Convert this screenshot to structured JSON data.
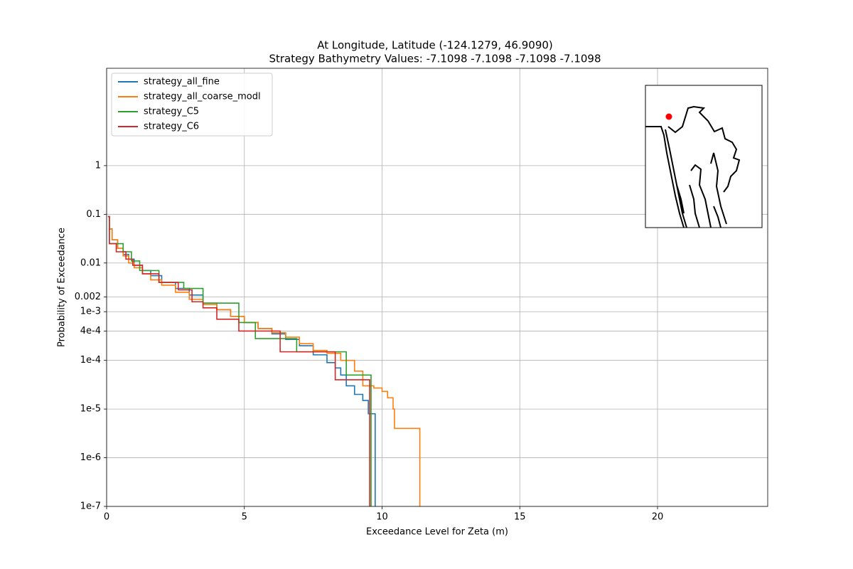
{
  "chart_data": {
    "type": "line",
    "drawstyle": "steps-post",
    "title": "At Longitude, Latitude (-124.1279,  46.9090)",
    "subtitle": "Strategy Bathymetry Values:   -7.1098   -7.1098   -7.1098   -7.1098",
    "x_label": "Exceedance Level for Zeta (m)",
    "y_label": "Probability of Exceedance",
    "xlim": [
      0,
      24
    ],
    "xticks": [
      0,
      5,
      10,
      15,
      20
    ],
    "ylim": [
      1e-07,
      100
    ],
    "log_y": true,
    "grid": true,
    "legend": "upper left",
    "yticks": [
      1e-07,
      {
        "value": 1e-06,
        "label": "1e-6"
      },
      {
        "value": 1e-05,
        "label": "1e-5"
      },
      {
        "value": 0.0001,
        "label": "1e-4"
      },
      {
        "value": 0.0004,
        "label": "4e-4"
      },
      {
        "value": 0.001,
        "label": "1e-3"
      },
      0.002,
      0.01,
      0.1,
      1
    ],
    "series": [
      {
        "name": "strategy_all_fine",
        "color": "#1f77b4",
        "x": [
          0.05,
          0.1,
          0.2,
          0.4,
          0.6,
          0.8,
          1.0,
          1.3,
          1.6,
          2.0,
          2.5,
          3.0,
          3.5,
          4.0,
          4.5,
          5.0,
          5.5,
          6.0,
          6.5,
          7.0,
          7.5,
          8.0,
          8.3,
          8.5,
          8.7,
          9.0,
          9.3,
          9.5,
          9.75
        ],
        "values": [
          0.09,
          0.05,
          0.03,
          0.02,
          0.015,
          0.012,
          0.009,
          0.007,
          0.0055,
          0.004,
          0.003,
          0.0022,
          0.0015,
          0.0011,
          0.0008,
          0.0006,
          0.00045,
          0.00035,
          0.00027,
          0.0002,
          0.00013,
          9e-05,
          7e-05,
          5e-05,
          3e-05,
          2e-05,
          1.5e-05,
          8e-06,
          0
        ]
      },
      {
        "name": "strategy_all_coarse_modl",
        "color": "#ff7f0e",
        "x": [
          0.05,
          0.1,
          0.2,
          0.4,
          0.6,
          0.8,
          1.0,
          1.3,
          1.6,
          2.0,
          2.5,
          3.0,
          3.5,
          4.0,
          4.5,
          5.0,
          5.5,
          6.0,
          6.5,
          7.0,
          7.5,
          8.0,
          8.5,
          9.0,
          9.3,
          9.7,
          10.0,
          10.2,
          10.4,
          10.45,
          11.37
        ],
        "values": [
          0.09,
          0.05,
          0.03,
          0.02,
          0.014,
          0.01,
          0.008,
          0.006,
          0.0045,
          0.0035,
          0.0025,
          0.0018,
          0.0014,
          0.0011,
          0.0008,
          0.0006,
          0.00045,
          0.00037,
          0.0003,
          0.00022,
          0.00016,
          0.00014,
          0.0001,
          6e-05,
          3e-05,
          2.7e-05,
          2.3e-05,
          1.7e-05,
          1e-05,
          4e-06,
          0
        ]
      },
      {
        "name": "strategy_C5",
        "color": "#2ca02c",
        "x": [
          0.05,
          0.1,
          0.6,
          0.9,
          1.2,
          1.9,
          2.8,
          3.5,
          4.8,
          5.4,
          6.9,
          8.7,
          9.6
        ],
        "values": [
          0.09,
          0.025,
          0.017,
          0.011,
          0.007,
          0.004,
          0.003,
          0.0015,
          0.0006,
          0.00028,
          0.00015,
          5e-05,
          0
        ]
      },
      {
        "name": "strategy_C6",
        "color": "#d62728",
        "x": [
          0.05,
          0.1,
          0.35,
          0.7,
          0.95,
          1.3,
          1.9,
          2.6,
          3.1,
          3.5,
          4.0,
          4.8,
          6.3,
          8.3,
          9.55
        ],
        "values": [
          0.09,
          0.025,
          0.017,
          0.012,
          0.009,
          0.006,
          0.004,
          0.0028,
          0.0016,
          0.0012,
          0.0007,
          0.0004,
          0.00015,
          4e-05,
          0
        ]
      }
    ]
  }
}
